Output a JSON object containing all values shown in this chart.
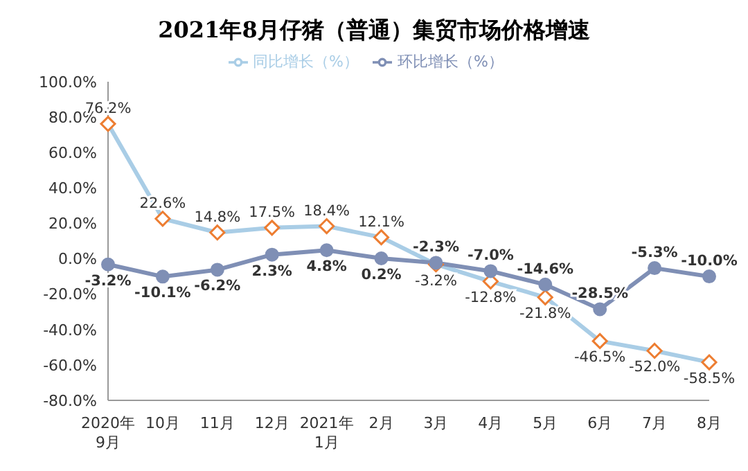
{
  "chart_data": {
    "type": "line",
    "title": "2021年8月仔猪（普通）集贸市场价格增速",
    "categories": [
      "2020年\n9月",
      "10月",
      "11月",
      "12月",
      "2021年\n1月",
      "2月",
      "3月",
      "4月",
      "5月",
      "6月",
      "7月",
      "8月"
    ],
    "series": [
      {
        "name": "同比增长（%）",
        "color": "#a9cde6",
        "marker": "diamond",
        "values": [
          76.2,
          22.6,
          14.8,
          17.5,
          18.4,
          12.1,
          -3.2,
          -12.8,
          -21.8,
          -46.5,
          -52.0,
          -58.5
        ],
        "value_labels": [
          "76.2%",
          "22.6%",
          "14.8%",
          "17.5%",
          "18.4%",
          "12.1%",
          "-3.2%",
          "-12.8%",
          "-21.8%",
          "-46.5%",
          "-52.0%",
          "-58.5%"
        ]
      },
      {
        "name": "环比增长（%）",
        "color": "#7f8fb5",
        "marker": "circle",
        "values": [
          -3.2,
          -10.1,
          -6.2,
          2.3,
          4.8,
          0.2,
          -2.3,
          -7.0,
          -14.6,
          -28.5,
          -5.3,
          -10.0
        ],
        "value_labels": [
          "-3.2%",
          "-10.1%",
          "-6.2%",
          "2.3%",
          "4.8%",
          "0.2%",
          "-2.3%",
          "-7.0%",
          "-14.6%",
          "-28.5%",
          "-5.3%",
          "-10.0%"
        ]
      }
    ],
    "ylim": [
      -80,
      100
    ],
    "yticks": [
      {
        "value": -80,
        "label": "-80.0%"
      },
      {
        "value": -60,
        "label": "-60.0%"
      },
      {
        "value": -40,
        "label": "-40.0%"
      },
      {
        "value": -20,
        "label": "-20.0%"
      },
      {
        "value": 0,
        "label": "0.0%"
      },
      {
        "value": 20,
        "label": "20.0%"
      },
      {
        "value": 40,
        "label": "40.0%"
      },
      {
        "value": 60,
        "label": "60.0%"
      },
      {
        "value": 80,
        "label": "80.0%"
      },
      {
        "value": 100,
        "label": "100.0%"
      }
    ],
    "legend": "top",
    "line_style": "solid"
  }
}
